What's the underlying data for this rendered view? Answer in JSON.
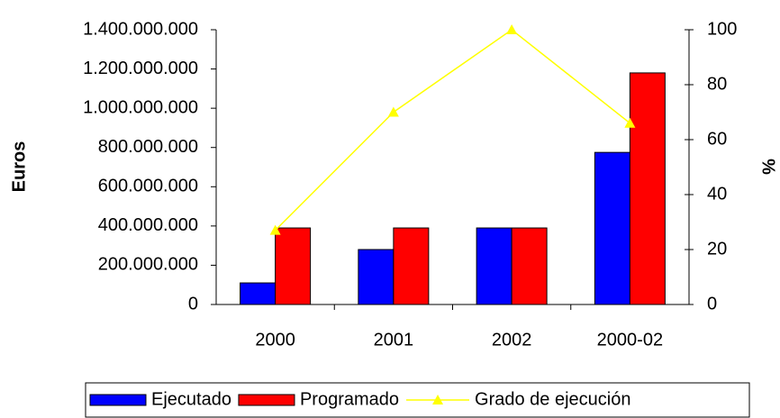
{
  "chart_data": {
    "type": "bar",
    "categories": [
      "2000",
      "2001",
      "2002",
      "2000-02"
    ],
    "series": [
      {
        "name": "Ejecutado",
        "color": "#0000ff",
        "values": [
          110000000,
          280000000,
          390000000,
          775000000
        ]
      },
      {
        "name": "Programado",
        "color": "#ff0000",
        "values": [
          390000000,
          390000000,
          390000000,
          1180000000
        ]
      },
      {
        "name": "Grado de ejecución",
        "color": "#ffff00",
        "type": "line",
        "axis": "y2",
        "values": [
          27,
          70,
          100,
          66
        ]
      }
    ],
    "ylabel": "Euros",
    "y2label": "%",
    "ylim": [
      0,
      1400000000
    ],
    "yticks": [
      0,
      {
        "value": 200000000,
        "label": "200.000.000"
      },
      {
        "value": 400000000,
        "label": "400.000.000"
      },
      {
        "value": 600000000,
        "label": "600.000.000"
      },
      {
        "value": 800000000,
        "label": "800.000.000"
      },
      {
        "value": 1000000000,
        "label": "1.000.000.000"
      },
      {
        "value": 1200000000,
        "label": "1.200.000.000"
      },
      {
        "value": 1400000000,
        "label": "1.400.000.000"
      }
    ],
    "y2lim": [
      0,
      100
    ],
    "y2ticks": [
      0,
      20,
      40,
      60,
      80,
      100
    ],
    "legend": "bottom"
  }
}
